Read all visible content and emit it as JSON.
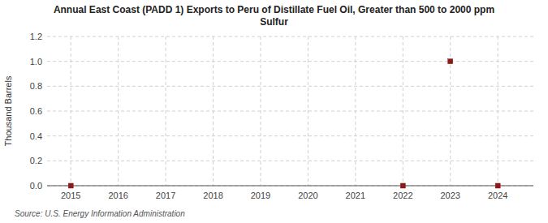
{
  "chart_data": {
    "type": "scatter",
    "title": "Annual East Coast (PADD 1) Exports to Peru of Distillate Fuel Oil, Greater than 500 to 2000 ppm\nSulfur",
    "ylabel": "Thousand Barrels",
    "source": "Source: U.S. Energy Information Administration",
    "x": [
      2015,
      2022,
      2023,
      2024
    ],
    "values": [
      0.0,
      0.0,
      1.0,
      0.0
    ],
    "xlim": [
      2014.5,
      2024.75
    ],
    "ylim": [
      0.0,
      1.2
    ],
    "xticks": [
      2015,
      2016,
      2017,
      2018,
      2019,
      2020,
      2021,
      2022,
      2023,
      2024
    ],
    "yticks": [
      {
        "value": 0.0,
        "label": "0.0"
      },
      {
        "value": 0.2,
        "label": "0.2"
      },
      {
        "value": 0.4,
        "label": "0.4"
      },
      {
        "value": 0.6,
        "label": "0.6"
      },
      {
        "value": 0.8,
        "label": "0.8"
      },
      {
        "value": 1.0,
        "label": "1.0"
      },
      {
        "value": 1.2,
        "label": "1.2"
      }
    ],
    "grid": true,
    "marker": "square",
    "color": "#8b1a1a"
  }
}
